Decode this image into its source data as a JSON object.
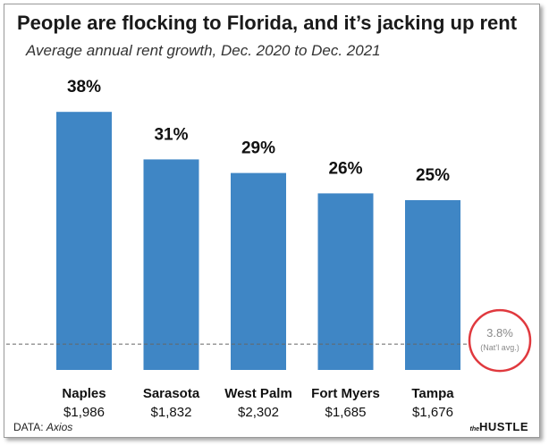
{
  "chart_data": {
    "type": "bar",
    "title": "People are flocking to Florida, and it’s jacking up rent",
    "subtitle": "Average annual rent growth, Dec. 2020 to Dec. 2021",
    "categories": [
      "Naples",
      "Sarasota",
      "West Palm",
      "Fort Myers",
      "Tampa"
    ],
    "values": [
      38,
      31,
      29,
      26,
      25
    ],
    "value_labels": [
      "38%",
      "31%",
      "29%",
      "26%",
      "25%"
    ],
    "sub_labels": [
      "$1,986",
      "$1,832",
      "$2,302",
      "$1,685",
      "$1,676"
    ],
    "bar_color": "#3f86c5",
    "reference_line": {
      "value": 3.8,
      "label": "3.8%",
      "sublabel": "(Nat’l avg.)",
      "circle_color": "#e0393e"
    },
    "ylim": [
      0,
      40
    ],
    "xlabel": "",
    "ylabel": ""
  },
  "source": {
    "prefix": "DATA:",
    "name": "Axios"
  },
  "brand": {
    "small": "the",
    "big": "HUSTLE"
  }
}
